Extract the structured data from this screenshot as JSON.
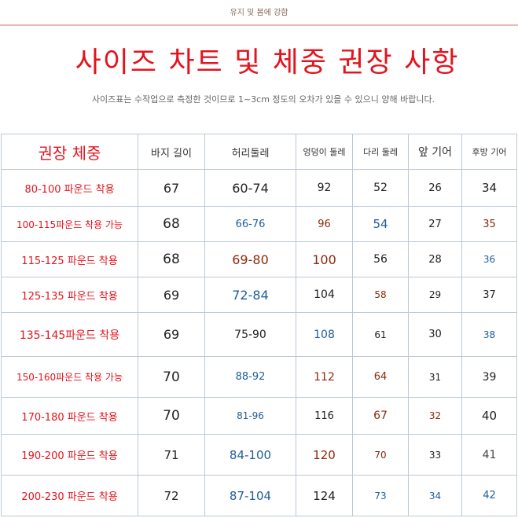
{
  "top_note": "유지 및 봄에 강함",
  "title": "사이즈 차트 및 체중 권장 사항",
  "subtitle": "사이즈표는 수작업으로 측정한 것이므로 1~3cm 정도의 오차가 있을 수 있으니 양해 바랍니다.",
  "table": {
    "headers": [
      "권장 체중",
      "바지 길이",
      "허리둘레",
      "엉덩이 둘레",
      "다리 둘레",
      "앞 기어",
      "후방 기어"
    ],
    "rows": [
      [
        "80-100 파운드 착용",
        "67",
        "60-74",
        "92",
        "52",
        "26",
        "34"
      ],
      [
        "100-115파운드 착용 가능",
        "68",
        "66-76",
        "96",
        "54",
        "27",
        "35"
      ],
      [
        "115-125 파운드 착용",
        "68",
        "69-80",
        "100",
        "56",
        "28",
        "36"
      ],
      [
        "125-135 파운드 착용",
        "69",
        "72-84",
        "104",
        "58",
        "29",
        "37"
      ],
      [
        "135-145파운드 착용",
        "69",
        "75-90",
        "108",
        "61",
        "30",
        "38"
      ],
      [
        "150-160파운드 착용 가능",
        "70",
        "88-92",
        "112",
        "64",
        "31",
        "39"
      ],
      [
        "170-180 파운드 착용",
        "70",
        "81-96",
        "116",
        "67",
        "32",
        "40"
      ],
      [
        "190-200 파운드 착용",
        "71",
        "84-100",
        "120",
        "70",
        "33",
        "41"
      ],
      [
        "200-230 파운드 착용",
        "72",
        "87-104",
        "124",
        "73",
        "34",
        "42"
      ]
    ]
  },
  "colors": {
    "title_red": "#e4141e",
    "blue": "#1f5d99",
    "brown": "#8b2a0a",
    "border": "#bcc9d6"
  }
}
